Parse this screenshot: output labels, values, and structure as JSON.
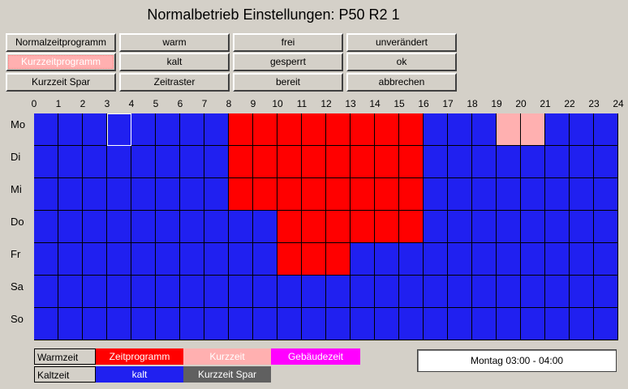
{
  "title": "Normalbetrieb Einstellungen: P50 R2 1",
  "buttons": [
    [
      "Normalzeitprogramm",
      "warm",
      "frei",
      "unverändert"
    ],
    [
      "Kurzzeitprogramm",
      "kalt",
      "gesperrt",
      "ok"
    ],
    [
      "Kurzzeit Spar",
      "Zeitraster",
      "bereit",
      "abbrechen"
    ]
  ],
  "active_button": "Kurzzeitprogramm",
  "hours": [
    "0",
    "1",
    "2",
    "3",
    "4",
    "5",
    "6",
    "7",
    "8",
    "9",
    "10",
    "11",
    "12",
    "13",
    "14",
    "15",
    "16",
    "17",
    "18",
    "19",
    "20",
    "21",
    "22",
    "23",
    "24"
  ],
  "days": [
    "Mo",
    "Di",
    "Mi",
    "Do",
    "Fr",
    "Sa",
    "So"
  ],
  "colors": {
    "kalt": "#2020f0",
    "zeitprogramm": "#ff0000",
    "kurzzeit": "#ffb0b0",
    "gebaeudezeit": "#ff00ff",
    "kurzzeit_spar": "#606060"
  },
  "schedule": [
    [
      "kalt",
      "kalt",
      "kalt",
      "kalt",
      "kalt",
      "kalt",
      "kalt",
      "kalt",
      "zeitprogramm",
      "zeitprogramm",
      "zeitprogramm",
      "zeitprogramm",
      "zeitprogramm",
      "zeitprogramm",
      "zeitprogramm",
      "zeitprogramm",
      "kalt",
      "kalt",
      "kalt",
      "kurzzeit",
      "kurzzeit",
      "kalt",
      "kalt",
      "kalt"
    ],
    [
      "kalt",
      "kalt",
      "kalt",
      "kalt",
      "kalt",
      "kalt",
      "kalt",
      "kalt",
      "zeitprogramm",
      "zeitprogramm",
      "zeitprogramm",
      "zeitprogramm",
      "zeitprogramm",
      "zeitprogramm",
      "zeitprogramm",
      "zeitprogramm",
      "kalt",
      "kalt",
      "kalt",
      "kalt",
      "kalt",
      "kalt",
      "kalt",
      "kalt"
    ],
    [
      "kalt",
      "kalt",
      "kalt",
      "kalt",
      "kalt",
      "kalt",
      "kalt",
      "kalt",
      "zeitprogramm",
      "zeitprogramm",
      "zeitprogramm",
      "zeitprogramm",
      "zeitprogramm",
      "zeitprogramm",
      "zeitprogramm",
      "zeitprogramm",
      "kalt",
      "kalt",
      "kalt",
      "kalt",
      "kalt",
      "kalt",
      "kalt",
      "kalt"
    ],
    [
      "kalt",
      "kalt",
      "kalt",
      "kalt",
      "kalt",
      "kalt",
      "kalt",
      "kalt",
      "kalt",
      "kalt",
      "zeitprogramm",
      "zeitprogramm",
      "zeitprogramm",
      "zeitprogramm",
      "zeitprogramm",
      "zeitprogramm",
      "kalt",
      "kalt",
      "kalt",
      "kalt",
      "kalt",
      "kalt",
      "kalt",
      "kalt"
    ],
    [
      "kalt",
      "kalt",
      "kalt",
      "kalt",
      "kalt",
      "kalt",
      "kalt",
      "kalt",
      "kalt",
      "kalt",
      "zeitprogramm",
      "zeitprogramm",
      "zeitprogramm",
      "kalt",
      "kalt",
      "kalt",
      "kalt",
      "kalt",
      "kalt",
      "kalt",
      "kalt",
      "kalt",
      "kalt",
      "kalt"
    ],
    [
      "kalt",
      "kalt",
      "kalt",
      "kalt",
      "kalt",
      "kalt",
      "kalt",
      "kalt",
      "kalt",
      "kalt",
      "kalt",
      "kalt",
      "kalt",
      "kalt",
      "kalt",
      "kalt",
      "kalt",
      "kalt",
      "kalt",
      "kalt",
      "kalt",
      "kalt",
      "kalt",
      "kalt"
    ],
    [
      "kalt",
      "kalt",
      "kalt",
      "kalt",
      "kalt",
      "kalt",
      "kalt",
      "kalt",
      "kalt",
      "kalt",
      "kalt",
      "kalt",
      "kalt",
      "kalt",
      "kalt",
      "kalt",
      "kalt",
      "kalt",
      "kalt",
      "kalt",
      "kalt",
      "kalt",
      "kalt",
      "kalt"
    ]
  ],
  "selected": {
    "day": "Mo",
    "hour": "3"
  },
  "legend": {
    "warmzeit": "Warmzeit",
    "kaltzeit": "Kaltzeit",
    "zeitprogramm": "Zeitprogramm",
    "kurzzeit": "Kurzzeit",
    "gebaeudezeit": "Gebäudezeit",
    "kalt": "kalt",
    "kurzzeit_spar": "Kurzzeit Spar"
  },
  "status_text": "Montag  03:00 - 04:00"
}
